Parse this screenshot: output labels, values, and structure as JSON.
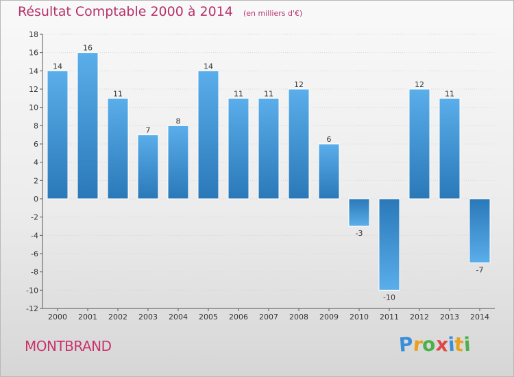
{
  "chart_data": {
    "type": "bar",
    "title": "Résultat Comptable 2000 à 2014",
    "unit": "(en milliers d'€)",
    "categories": [
      "2000",
      "2001",
      "2002",
      "2003",
      "2004",
      "2005",
      "2006",
      "2007",
      "2008",
      "2009",
      "2010",
      "2011",
      "2012",
      "2013",
      "2014"
    ],
    "values": [
      14,
      16,
      11,
      7,
      8,
      14,
      11,
      11,
      12,
      6,
      -3,
      -10,
      12,
      11,
      -7
    ],
    "value_labels": [
      "14",
      "16",
      "11",
      "7",
      "8",
      "14",
      "11",
      "11",
      "12",
      "6",
      "-3",
      "-10",
      "12",
      "11",
      "-7"
    ],
    "yticks": [
      "18",
      "16",
      "14",
      "12",
      "10",
      "8",
      "6",
      "4",
      "2",
      "0",
      "-2",
      "-4",
      "-6",
      "-8",
      "-10",
      "-12"
    ],
    "ylim": [
      -12,
      18
    ],
    "xlabel": "",
    "ylabel": "",
    "bar_color_light": "#5aaeea",
    "bar_color_dark": "#2a78b8"
  },
  "footer": {
    "commune": "MONTBRAND",
    "logo_letters": [
      "P",
      "r",
      "o",
      "x",
      "i",
      "t",
      "i"
    ],
    "logo_colors": [
      "#3a8fd8",
      "#e8a020",
      "#4ab04a",
      "#e04848",
      "#3a8fd8",
      "#e8a020",
      "#4ab04a"
    ]
  }
}
